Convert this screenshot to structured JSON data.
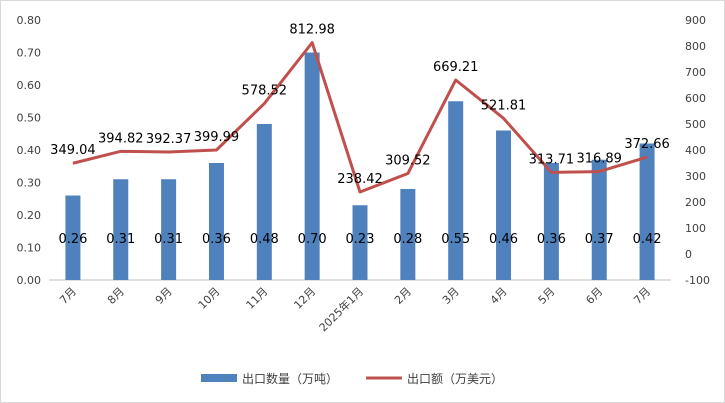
{
  "chart_data": {
    "type": "bar+line",
    "title": "",
    "categories": [
      "7月",
      "8月",
      "9月",
      "10月",
      "11月",
      "12月",
      "2025年1月",
      "2月",
      "3月",
      "4月",
      "5月",
      "6月",
      "7月"
    ],
    "series": [
      {
        "name": "出口数量（万吨）",
        "type": "bar",
        "axis": "left",
        "color": "#4F81BD",
        "values": [
          0.26,
          0.31,
          0.31,
          0.36,
          0.48,
          0.7,
          0.23,
          0.28,
          0.55,
          0.46,
          0.36,
          0.37,
          0.42
        ],
        "labels": [
          "0.26",
          "0.31",
          "0.31",
          "0.36",
          "0.48",
          "0.70",
          "0.23",
          "0.28",
          "0.55",
          "0.46",
          "0.36",
          "0.37",
          "0.42"
        ]
      },
      {
        "name": "出口额（万美元）",
        "type": "line",
        "axis": "right",
        "color": "#C0504D",
        "values": [
          349.04,
          394.82,
          392.37,
          399.99,
          578.52,
          812.98,
          238.42,
          309.52,
          669.21,
          521.81,
          313.71,
          316.89,
          372.66
        ],
        "labels": [
          "349.04",
          "394.82",
          "392.37",
          "399.99",
          "578.52",
          "812.98",
          "238.42",
          "309.52",
          "669.21",
          "521.81",
          "313.71",
          "316.89",
          "372.66"
        ]
      }
    ],
    "y_left": {
      "min": 0,
      "max": 0.8,
      "ticks": [
        0,
        0.1,
        0.2,
        0.3,
        0.4,
        0.5,
        0.6,
        0.7,
        0.8
      ],
      "tick_labels": [
        "0.00",
        "0.10",
        "0.20",
        "0.30",
        "0.40",
        "0.50",
        "0.60",
        "0.70",
        "0.80"
      ]
    },
    "y_right": {
      "min": -100,
      "max": 900,
      "ticks": [
        -100,
        0,
        100,
        200,
        300,
        400,
        500,
        600,
        700,
        800,
        900
      ],
      "tick_labels": [
        "-100",
        "0",
        "100",
        "200",
        "300",
        "400",
        "500",
        "600",
        "700",
        "800",
        "900"
      ]
    },
    "grid": false,
    "legend_position": "bottom"
  }
}
